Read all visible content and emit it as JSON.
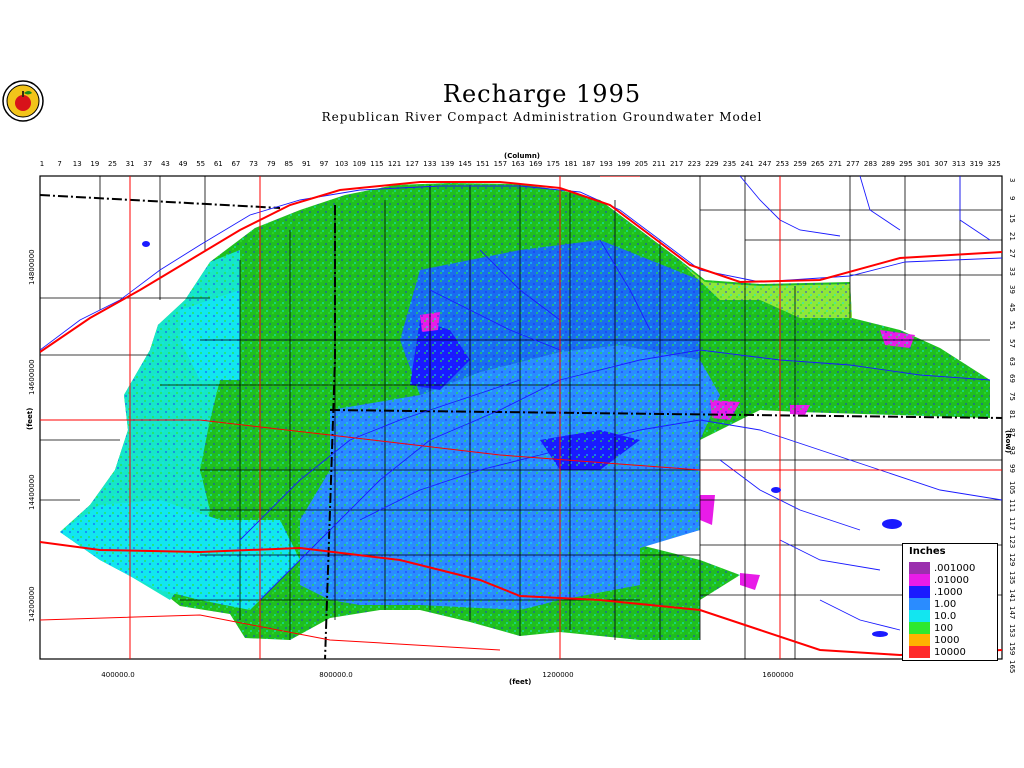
{
  "title": "Recharge 1995",
  "subtitle": "Republican River Compact Administration Groundwater Model",
  "column_axis_label": "(Column)",
  "row_axis_label": "(Row)",
  "x_axis_label": "(feet)",
  "y_axis_label": "(feet)",
  "column_ticks": [
    "1",
    "7",
    "13",
    "19",
    "25",
    "31",
    "37",
    "43",
    "49",
    "55",
    "61",
    "67",
    "73",
    "79",
    "85",
    "91",
    "97",
    "103",
    "109",
    "115",
    "121",
    "127",
    "133",
    "139",
    "145",
    "151",
    "157",
    "163",
    "169",
    "175",
    "181",
    "187",
    "193",
    "199",
    "205",
    "211",
    "217",
    "223",
    "229",
    "235",
    "241",
    "247",
    "253",
    "259",
    "265",
    "271",
    "277",
    "283",
    "289",
    "295",
    "301",
    "307",
    "313",
    "319",
    "325"
  ],
  "row_ticks": [
    "3",
    "9",
    "15",
    "21",
    "27",
    "33",
    "39",
    "45",
    "51",
    "57",
    "63",
    "69",
    "75",
    "81",
    "87",
    "93",
    "99",
    "105",
    "111",
    "117",
    "123",
    "129",
    "135",
    "141",
    "147",
    "153",
    "159",
    "165"
  ],
  "x_ticks": [
    "400000.0",
    "800000.0",
    "1200000",
    "1600000"
  ],
  "y_ticks": [
    "14800000",
    "14600000",
    "14400000",
    "14200000"
  ],
  "legend": {
    "title": "Inches",
    "items": [
      {
        "label": ".001000",
        "color": "#9b2fae"
      },
      {
        "label": ".01000",
        "color": "#e81ce8"
      },
      {
        "label": ".1000",
        "color": "#1a1aff"
      },
      {
        "label": "1.00",
        "color": "#2a8cff"
      },
      {
        "label": "10.0",
        "color": "#12e6f0"
      },
      {
        "label": "100",
        "color": "#2ee82e"
      },
      {
        "label": "1000",
        "color": "#ffb300"
      },
      {
        "label": "10000",
        "color": "#ff2a2a"
      }
    ]
  },
  "colors": {
    "rivers": "#1a1aff",
    "roads": "#ff0000",
    "boundaries": "#000000"
  }
}
